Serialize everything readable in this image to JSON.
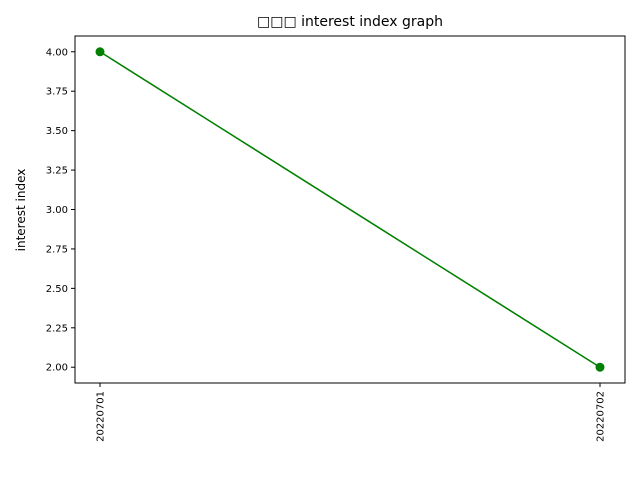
{
  "chart_data": {
    "type": "line",
    "title": "□□□ interest index graph",
    "xlabel": "",
    "ylabel": "interest index",
    "categories": [
      "20220701",
      "20220702"
    ],
    "series": [
      {
        "values": [
          4.0,
          2.0
        ],
        "color": "#008000",
        "marker": "circle"
      }
    ],
    "ylim": [
      1.9,
      4.1
    ],
    "yticks": [
      2.0,
      2.25,
      2.5,
      2.75,
      3.0,
      3.25,
      3.5,
      3.75,
      4.0
    ],
    "ytick_labels": [
      "2.00",
      "2.25",
      "2.50",
      "2.75",
      "3.00",
      "3.25",
      "3.50",
      "3.75",
      "4.00"
    ],
    "grid": false,
    "legend": false
  }
}
